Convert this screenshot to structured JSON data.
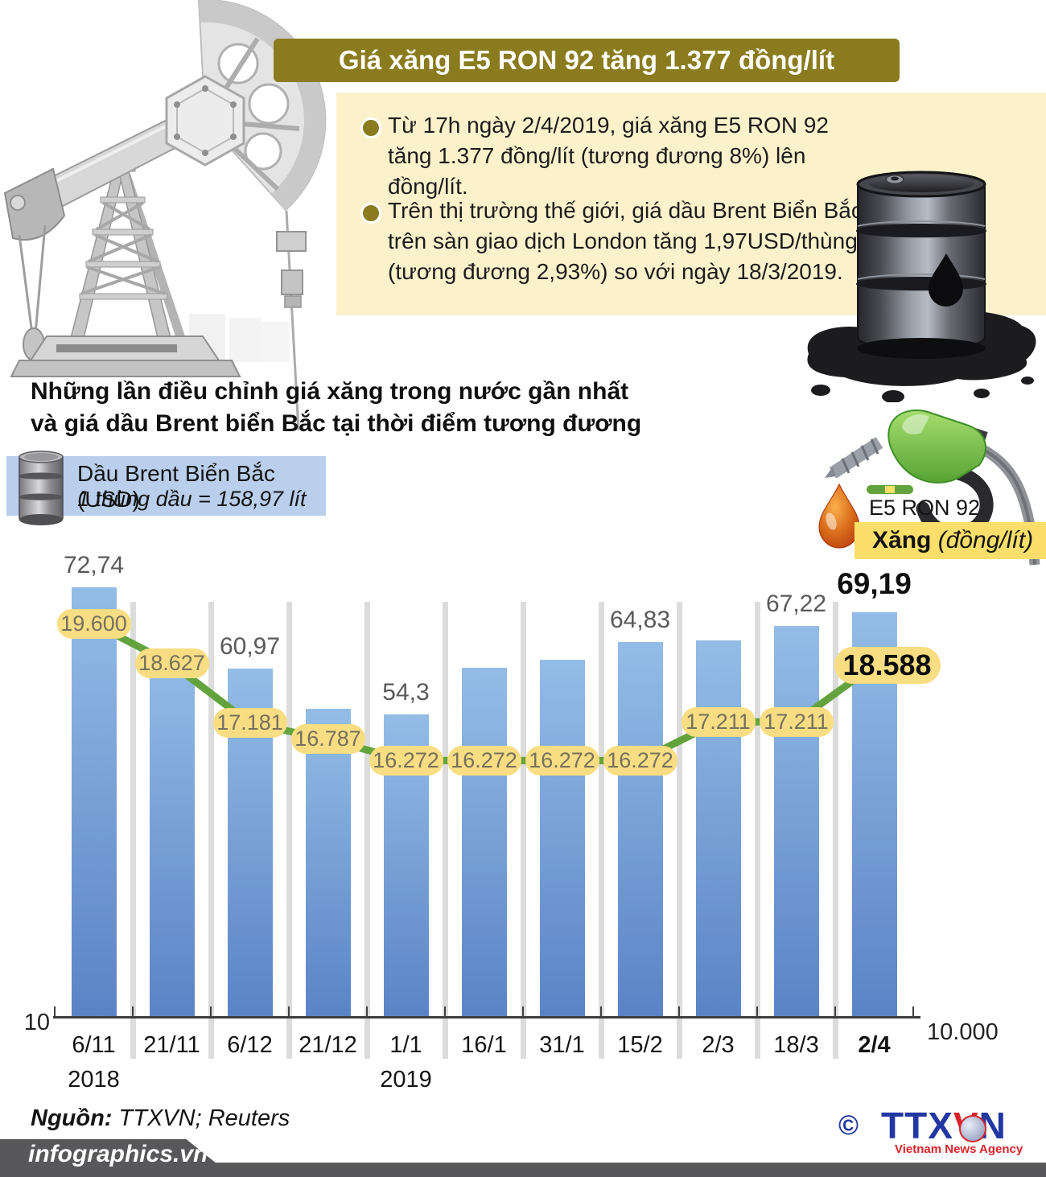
{
  "title": "Giá xăng E5 RON 92 tăng 1.377 đồng/lít",
  "bullets": [
    "Từ 17h ngày 2/4/2019, giá xăng E5 RON 92 tăng 1.377 đồng/lít (tương đương 8%) lên  đồng/lít.",
    "Trên thị trường thế giới, giá dầu Brent Biển Bắc trên sàn giao dịch London tăng 1,97USD/thùng (tương đương 2,93%) so với ngày 18/3/2019."
  ],
  "section_heading": {
    "line1": "Những lần điều chỉnh giá xăng trong nước gần nhất",
    "line2": "và giá dầu Brent biển Bắc tại thời điểm tương đương"
  },
  "legend_brent": {
    "title": "Dầu Brent Biển Bắc (USD)",
    "subtitle": "1 thùng dầu = 158,97 lít"
  },
  "legend_e5": {
    "series": "E5 RON 92",
    "product_bold": "Xăng ",
    "product_unit": "(đồng/lít)"
  },
  "chart_data": {
    "type": "combo bar+line",
    "categories": [
      "6/11",
      "21/11",
      "6/12",
      "21/12",
      "1/1",
      "16/1",
      "31/1",
      "15/2",
      "2/3",
      "18/3",
      "2/4"
    ],
    "year_markers": [
      {
        "index": 0,
        "label": "2018"
      },
      {
        "index": 4,
        "label": "2019"
      }
    ],
    "highlight_last_category": true,
    "series": [
      {
        "name": "Dầu Brent Biển Bắc (USD)",
        "type": "bar",
        "values": [
          72.74,
          63.5,
          60.97,
          55.1,
          54.3,
          61.1,
          62.3,
          64.83,
          65.0,
          67.22,
          69.19
        ],
        "labels": [
          "72,74",
          "",
          "60,97",
          "",
          "54,3",
          "",
          "",
          "64,83",
          "",
          "67,22",
          "69,19"
        ]
      },
      {
        "name": "E5 RON 92 (đồng/lít)",
        "type": "line",
        "values": [
          19600,
          18627,
          17181,
          16787,
          16272,
          16272,
          16272,
          16272,
          17211,
          17211,
          18588
        ],
        "labels": [
          "19.600",
          "18.627",
          "17.181",
          "16.787",
          "16.272",
          "16.272",
          "16.272",
          "16.272",
          "17.211",
          "17.211",
          "18.588"
        ]
      }
    ],
    "ylim_bar": [
      10,
      76.3
    ],
    "ylim_line": [
      10000,
      21070
    ],
    "axis_left_label": "10",
    "axis_right_label": "10.000",
    "grid": "vertical category dividers",
    "legend_position": "above chart (left: barrel/Brent, right: nozzle/E5)"
  },
  "source": {
    "label": "Nguồn:",
    "value": " TTXVN; Reuters"
  },
  "footer": {
    "site": "infographics.vn"
  },
  "agency": {
    "copyright": "©",
    "name_part1": "TTX",
    "name_red": "V",
    "name_part2": "N",
    "tagline": "Vietnam News Agency"
  },
  "colors": {
    "title_bar": "#8a7b1e",
    "bullet_box": "#fbf2cc",
    "bar_top": "#93bde6",
    "bar_bottom": "#5a83c6",
    "line": "#63a33e",
    "pill_bg": "#f8dd82",
    "pill_text": "#76705f",
    "pill_text_bold": "#0d0d0d",
    "brent_legend_bg": "#b9cfec",
    "xang_box_bg": "#fcdf6a",
    "banner": "#58585a",
    "divider": "#dcdcdc",
    "axis": "#3e3e3e",
    "bar_label": "#595959",
    "bar_label_bold": "#0f0f0f"
  }
}
